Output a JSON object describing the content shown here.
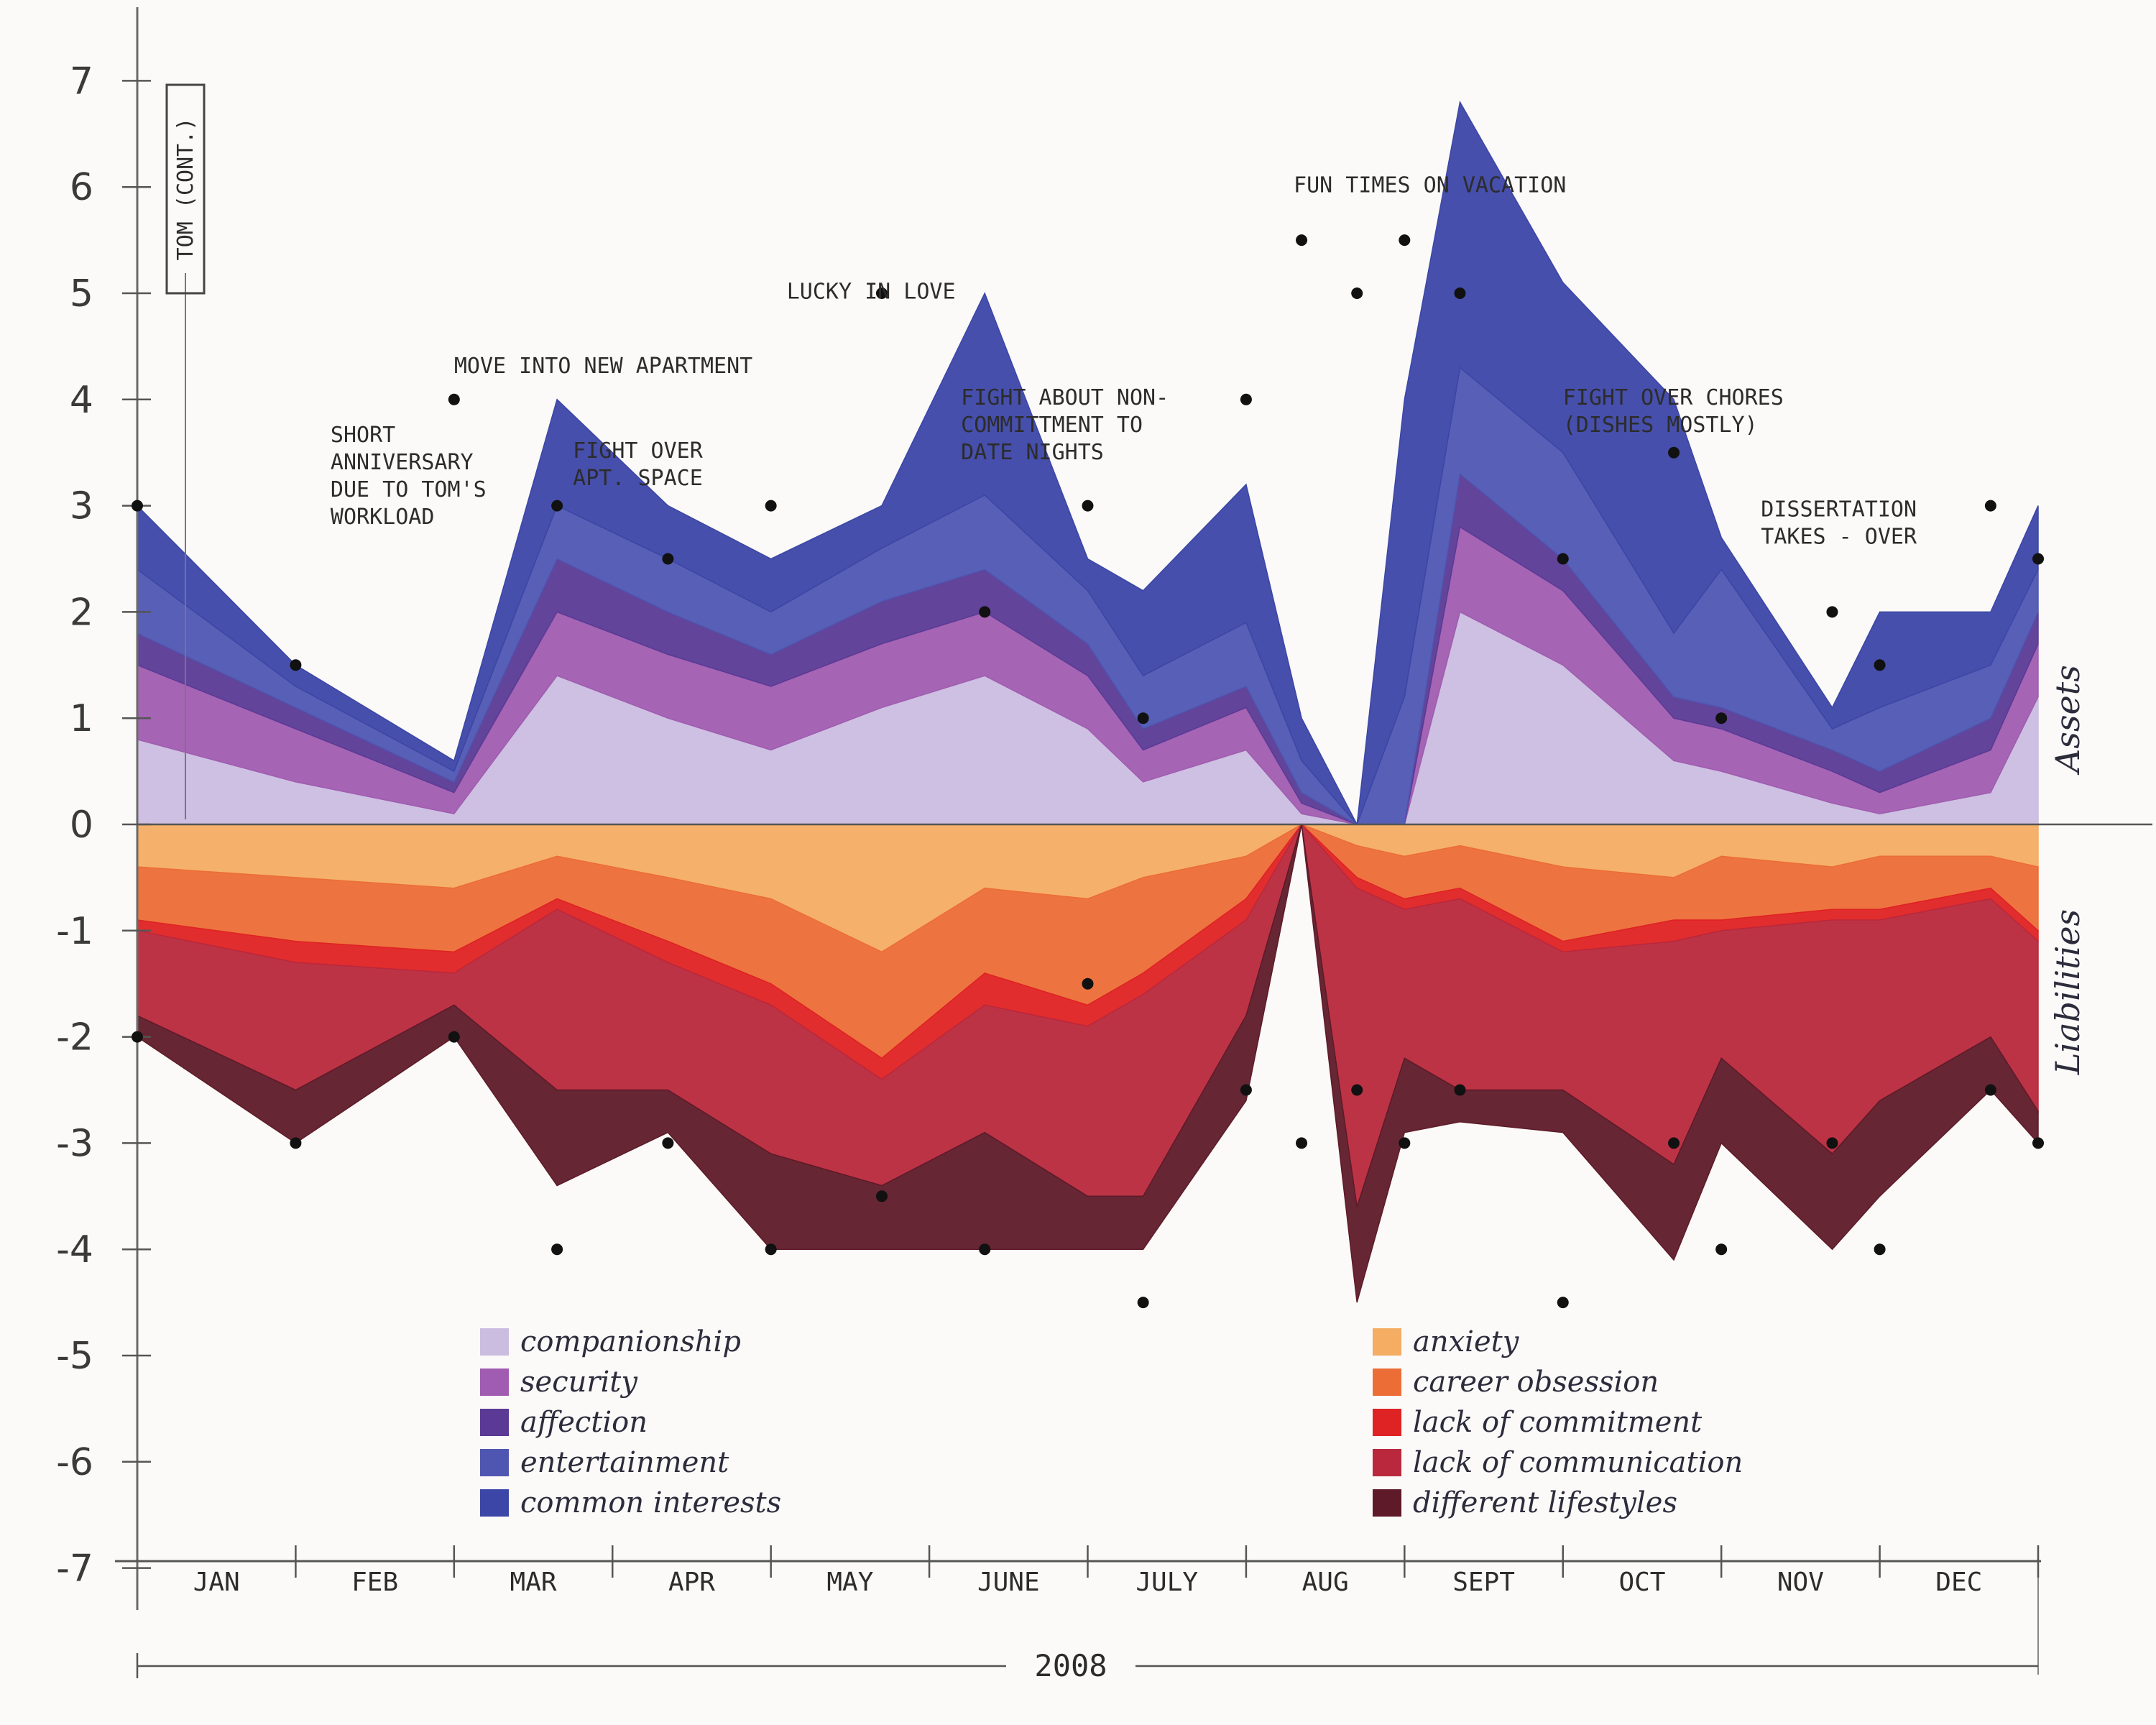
{
  "chart_data": {
    "type": "area",
    "title": "TOM (CONT.)",
    "xlabel": "2008",
    "ylabel_top": "Assets",
    "ylabel_bottom": "Liabilities",
    "ylim": [
      -7,
      7
    ],
    "y_ticks": [
      "7",
      "6",
      "5",
      "4",
      "3",
      "2",
      "1",
      "0",
      "-1",
      "-2",
      "-3",
      "-4",
      "-5",
      "-6",
      "-7"
    ],
    "months": [
      "JAN",
      "FEB",
      "MAR",
      "APR",
      "MAY",
      "JUNE",
      "JULY",
      "AUG",
      "SEPT",
      "OCT",
      "NOV",
      "DEC"
    ],
    "x": [
      0,
      1,
      2,
      2.65,
      3.35,
      4,
      4.7,
      5.35,
      6,
      6.35,
      7,
      7.35,
      7.7,
      8,
      8.35,
      9,
      9.7,
      10,
      10.7,
      11,
      11.7,
      12
    ],
    "assets": [
      {
        "name": "companionship",
        "color": "#cbbde0",
        "values": [
          0.8,
          0.4,
          0.1,
          1.4,
          1.0,
          0.7,
          1.1,
          1.4,
          0.9,
          0.4,
          0.7,
          0.1,
          0,
          0,
          2.0,
          1.5,
          0.6,
          0.5,
          0.2,
          0.1,
          0.3,
          1.2
        ]
      },
      {
        "name": "security",
        "color": "#a05cb0",
        "values": [
          0.7,
          0.5,
          0.2,
          0.6,
          0.6,
          0.6,
          0.6,
          0.6,
          0.5,
          0.3,
          0.4,
          0.1,
          0,
          0,
          0.8,
          0.7,
          0.4,
          0.4,
          0.3,
          0.2,
          0.4,
          0.5
        ]
      },
      {
        "name": "affection",
        "color": "#5a3a95",
        "values": [
          0.3,
          0.2,
          0.1,
          0.5,
          0.4,
          0.3,
          0.4,
          0.4,
          0.3,
          0.2,
          0.2,
          0.1,
          0,
          0,
          0.5,
          0.3,
          0.2,
          0.2,
          0.2,
          0.2,
          0.3,
          0.3
        ]
      },
      {
        "name": "entertainment",
        "color": "#4f56b2",
        "values": [
          0.6,
          0.2,
          0.1,
          0.5,
          0.5,
          0.4,
          0.5,
          0.7,
          0.5,
          0.5,
          0.6,
          0.3,
          0,
          1.2,
          1.0,
          1.0,
          0.6,
          1.3,
          0.2,
          0.6,
          0.5,
          0.4
        ]
      },
      {
        "name": "common interests",
        "color": "#3c46a6",
        "values": [
          0.6,
          0.2,
          0.1,
          1.0,
          0.5,
          0.5,
          0.4,
          1.9,
          0.3,
          0.8,
          1.3,
          0.4,
          0,
          2.8,
          2.5,
          1.6,
          2.2,
          0.3,
          0.2,
          0.9,
          0.5,
          0.6
        ]
      }
    ],
    "liabilities": [
      {
        "name": "anxiety",
        "color": "#f4ad63",
        "values": [
          0.4,
          0.5,
          0.6,
          0.3,
          0.5,
          0.7,
          1.2,
          0.6,
          0.7,
          0.5,
          0.3,
          0,
          0.2,
          0.3,
          0.2,
          0.4,
          0.5,
          0.3,
          0.4,
          0.3,
          0.3,
          0.4
        ]
      },
      {
        "name": "career obsession",
        "color": "#ec6d36",
        "values": [
          0.5,
          0.6,
          0.6,
          0.4,
          0.6,
          0.8,
          1.0,
          0.8,
          1.0,
          0.9,
          0.4,
          0,
          0.3,
          0.4,
          0.4,
          0.7,
          0.4,
          0.6,
          0.4,
          0.5,
          0.3,
          0.6
        ]
      },
      {
        "name": "lack of commitment",
        "color": "#df2223",
        "values": [
          0.1,
          0.2,
          0.2,
          0.1,
          0.2,
          0.2,
          0.2,
          0.3,
          0.2,
          0.2,
          0.2,
          0,
          0.1,
          0.1,
          0.1,
          0.1,
          0.2,
          0.1,
          0.1,
          0.1,
          0.1,
          0.1
        ]
      },
      {
        "name": "lack of communication",
        "color": "#b9283c",
        "values": [
          0.8,
          1.2,
          0.3,
          1.7,
          1.2,
          1.4,
          1.0,
          1.2,
          1.6,
          1.9,
          0.9,
          0,
          3.0,
          1.4,
          1.8,
          1.3,
          2.1,
          1.2,
          2.2,
          1.7,
          1.3,
          1.6
        ]
      },
      {
        "name": "different lifestyles",
        "color": "#5e1a28",
        "values": [
          0.2,
          0.5,
          0.3,
          0.9,
          0.4,
          0.9,
          0.6,
          1.1,
          0.5,
          0.5,
          0.8,
          0,
          0.9,
          0.7,
          0.3,
          0.4,
          0.9,
          0.8,
          0.9,
          0.9,
          0.5,
          0.3
        ]
      }
    ],
    "top_points": [
      3,
      1.5,
      4,
      3,
      2.5,
      3,
      5,
      2,
      3,
      1,
      4,
      5.5,
      5,
      5.5,
      5,
      2.5,
      3.5,
      1,
      2,
      1.5,
      3,
      2.5
    ],
    "bottom_points": [
      -2,
      -3,
      -2,
      -4,
      -3,
      -4,
      -3.5,
      -4,
      -1.5,
      -4.5,
      -2.5,
      -3,
      -2.5,
      -3,
      -2.5,
      -4.5,
      -3,
      -4,
      -3,
      -4,
      -2.5,
      -3
    ],
    "annotations": [
      {
        "x": 1.22,
        "y": 3.6,
        "lines": [
          "SHORT",
          "ANNIVERSARY",
          "DUE TO TOM'S",
          "WORKLOAD"
        ]
      },
      {
        "x": 2.0,
        "y": 4.25,
        "lines": [
          "MOVE INTO NEW APARTMENT"
        ]
      },
      {
        "x": 2.75,
        "y": 3.45,
        "lines": [
          "FIGHT OVER",
          "APT. SPACE"
        ]
      },
      {
        "x": 4.1,
        "y": 4.95,
        "lines": [
          "LUCKY IN LOVE"
        ]
      },
      {
        "x": 5.2,
        "y": 3.95,
        "lines": [
          "FIGHT ABOUT NON-",
          "COMMITTMENT TO",
          "DATE NIGHTS"
        ]
      },
      {
        "x": 7.3,
        "y": 5.95,
        "lines": [
          "FUN TIMES ON VACATION"
        ]
      },
      {
        "x": 9.0,
        "y": 3.95,
        "lines": [
          "FIGHT OVER CHORES",
          "(DISHES MOSTLY)"
        ]
      },
      {
        "x": 10.25,
        "y": 2.9,
        "lines": [
          "DISSERTATION",
          "TAKES - OVER"
        ]
      }
    ]
  }
}
